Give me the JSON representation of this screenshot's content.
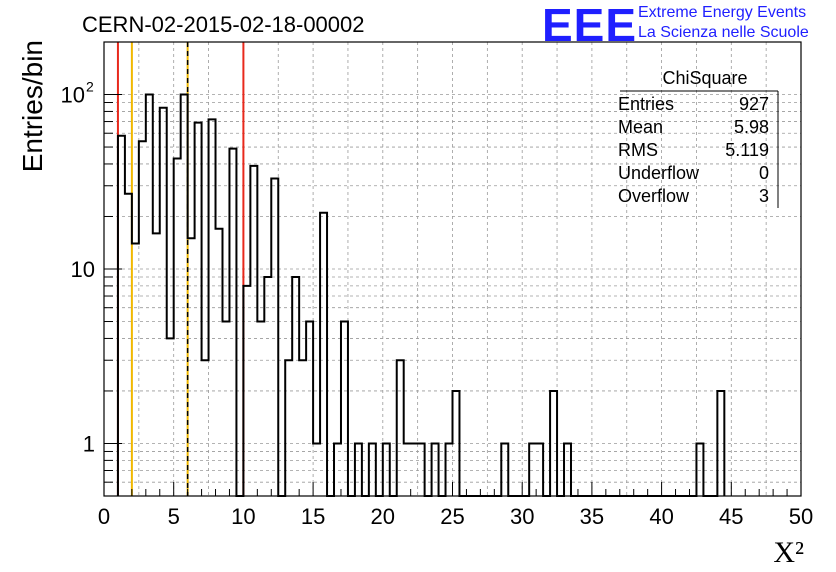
{
  "title": "CERN-02-2015-02-18-00002",
  "logo": {
    "letters": "EEE",
    "line1": "Extreme Energy Events",
    "line2": "La Scienza nelle Scuole",
    "color": "#1f1fff"
  },
  "stats_box": {
    "title": "ChiSquare",
    "rows": [
      {
        "label": "Entries",
        "value": "927"
      },
      {
        "label": "Mean",
        "value": "5.98"
      },
      {
        "label": "RMS",
        "value": "5.119"
      },
      {
        "label": "Underflow",
        "value": "0"
      },
      {
        "label": "Overflow",
        "value": "3"
      }
    ]
  },
  "chart_data": {
    "type": "histogram-step",
    "xlabel": "X²",
    "ylabel": "Entries/bin",
    "xlim": [
      0,
      50
    ],
    "ylim": [
      0.5,
      200
    ],
    "log_y": true,
    "grid": true,
    "bin_width": 0.5,
    "x_ticks": [
      "0",
      "5",
      "10",
      "15",
      "20",
      "25",
      "30",
      "35",
      "40",
      "45",
      "50"
    ],
    "y_ticks": [
      {
        "value": 1,
        "label": "1"
      },
      {
        "value": 10,
        "label": "10"
      },
      {
        "value": 100,
        "label": "10",
        "exponent": "2"
      }
    ],
    "bins": [
      {
        "x": 1.0,
        "y": 58
      },
      {
        "x": 1.5,
        "y": 27
      },
      {
        "x": 2.0,
        "y": 14
      },
      {
        "x": 2.5,
        "y": 54
      },
      {
        "x": 3.0,
        "y": 100
      },
      {
        "x": 3.5,
        "y": 16
      },
      {
        "x": 4.0,
        "y": 84
      },
      {
        "x": 4.5,
        "y": 4
      },
      {
        "x": 5.0,
        "y": 43
      },
      {
        "x": 5.5,
        "y": 100
      },
      {
        "x": 6.0,
        "y": 15
      },
      {
        "x": 6.5,
        "y": 69
      },
      {
        "x": 7.0,
        "y": 3
      },
      {
        "x": 7.5,
        "y": 72
      },
      {
        "x": 8.0,
        "y": 17
      },
      {
        "x": 8.5,
        "y": 5
      },
      {
        "x": 9.0,
        "y": 49
      },
      {
        "x": 9.5,
        "y": 0.5
      },
      {
        "x": 10.0,
        "y": 8
      },
      {
        "x": 10.5,
        "y": 39
      },
      {
        "x": 11.0,
        "y": 5
      },
      {
        "x": 11.5,
        "y": 9
      },
      {
        "x": 12.0,
        "y": 33
      },
      {
        "x": 12.5,
        "y": 0.5
      },
      {
        "x": 13.0,
        "y": 3
      },
      {
        "x": 13.5,
        "y": 9
      },
      {
        "x": 14.0,
        "y": 3
      },
      {
        "x": 14.5,
        "y": 5
      },
      {
        "x": 15.0,
        "y": 1
      },
      {
        "x": 15.5,
        "y": 21
      },
      {
        "x": 16.0,
        "y": 0.5
      },
      {
        "x": 16.5,
        "y": 1
      },
      {
        "x": 17.0,
        "y": 5
      },
      {
        "x": 17.5,
        "y": 0.5
      },
      {
        "x": 18.0,
        "y": 1
      },
      {
        "x": 18.5,
        "y": 0.5
      },
      {
        "x": 19.0,
        "y": 1
      },
      {
        "x": 19.5,
        "y": 0.5
      },
      {
        "x": 20.0,
        "y": 1
      },
      {
        "x": 20.5,
        "y": 0.5
      },
      {
        "x": 21.0,
        "y": 3
      },
      {
        "x": 21.5,
        "y": 1
      },
      {
        "x": 22.0,
        "y": 1
      },
      {
        "x": 22.5,
        "y": 1
      },
      {
        "x": 23.0,
        "y": 0.5
      },
      {
        "x": 23.5,
        "y": 1
      },
      {
        "x": 24.0,
        "y": 0.5
      },
      {
        "x": 24.5,
        "y": 1
      },
      {
        "x": 25.0,
        "y": 2
      },
      {
        "x": 25.5,
        "y": 0.5
      },
      {
        "x": 26.0,
        "y": 0.5
      },
      {
        "x": 26.5,
        "y": 0.5
      },
      {
        "x": 27.0,
        "y": 0.5
      },
      {
        "x": 27.5,
        "y": 0.5
      },
      {
        "x": 28.0,
        "y": 0.5
      },
      {
        "x": 28.5,
        "y": 1
      },
      {
        "x": 29.0,
        "y": 0.5
      },
      {
        "x": 29.5,
        "y": 0.5
      },
      {
        "x": 30.0,
        "y": 0.5
      },
      {
        "x": 30.5,
        "y": 1
      },
      {
        "x": 31.0,
        "y": 1
      },
      {
        "x": 31.5,
        "y": 0.5
      },
      {
        "x": 32.0,
        "y": 2
      },
      {
        "x": 32.5,
        "y": 0.5
      },
      {
        "x": 33.0,
        "y": 1
      },
      {
        "x": 33.5,
        "y": 0.5
      },
      {
        "x": 42.5,
        "y": 1
      },
      {
        "x": 43.0,
        "y": 0.5
      },
      {
        "x": 44.0,
        "y": 2
      }
    ],
    "vertical_lines": [
      {
        "x": 1.0,
        "color": "#e8291c",
        "style": "solid"
      },
      {
        "x": 2.0,
        "color": "#f0b800",
        "style": "solid"
      },
      {
        "x": 6.0,
        "color": "#f0b800",
        "style": "solid"
      },
      {
        "x": 6.0,
        "color": "#000000",
        "style": "dashed"
      },
      {
        "x": 10.0,
        "color": "#e8291c",
        "style": "solid"
      }
    ]
  }
}
